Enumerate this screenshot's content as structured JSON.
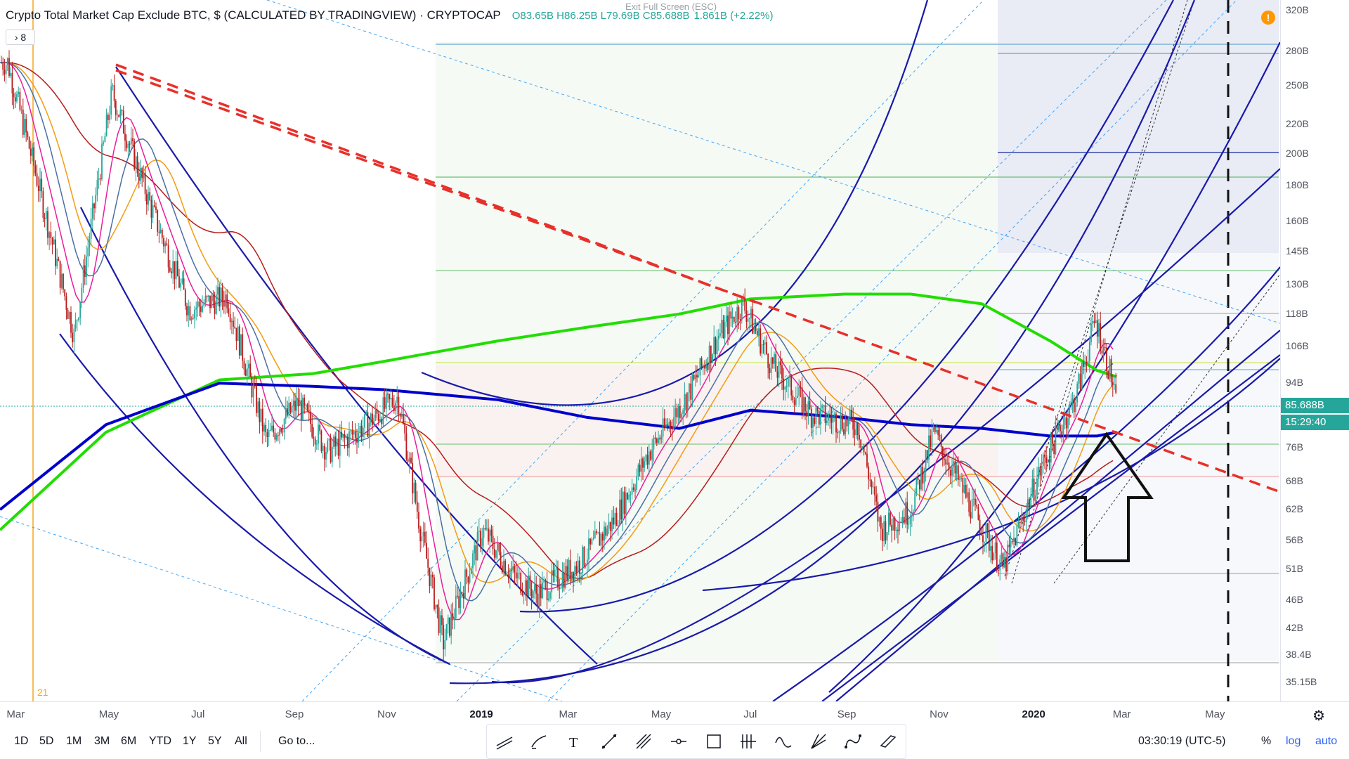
{
  "header": {
    "title": "Crypto Total Market Cap Exclude BTC, $ (CALCULATED BY TRADINGVIEW) · CRYPTOCAP",
    "ohlc": "O83.65B H86.25B L79.69B C85.688B",
    "change": "1.861B (+2.22%)",
    "exit_fullscreen": "Exit Full Screen (ESC)",
    "collapse_label": "› 8"
  },
  "price_axis": {
    "labels": [
      "320B",
      "280B",
      "250B",
      "220B",
      "200B",
      "180B",
      "160B",
      "145B",
      "130B",
      "118B",
      "106B",
      "94B",
      "76B",
      "68B",
      "62B",
      "56B",
      "51B",
      "46B",
      "42B",
      "38.4B",
      "35.15B"
    ],
    "last_price": "85.688B",
    "countdown": "15:29:40"
  },
  "time_axis": {
    "labels": [
      "Mar",
      "May",
      "Jul",
      "Sep",
      "Nov",
      "2019",
      "Mar",
      "May",
      "Jul",
      "Sep",
      "Nov",
      "2020",
      "Mar",
      "May"
    ]
  },
  "bottom_bar": {
    "ranges": [
      "1D",
      "5D",
      "1M",
      "3M",
      "6M",
      "YTD",
      "1Y",
      "5Y",
      "All"
    ],
    "goto": "Go to...",
    "clock": "03:30:19 (UTC-5)",
    "percent": "%",
    "log": "log",
    "auto": "auto"
  },
  "toolbar_icons": [
    "trend-line-icon",
    "brush-icon",
    "text-icon",
    "line-icon",
    "pitchfork-icon",
    "horizontal-ray-icon",
    "rectangle-icon",
    "fib-icon",
    "wave-icon",
    "gann-fan-icon",
    "path-icon",
    "parallel-channel-icon"
  ],
  "colors": {
    "accent_blue": "#0000cc",
    "ma_green": "#22dd00",
    "trend_red": "#e8302a",
    "price_tag": "#26a69a",
    "candle_up": "#26a69a",
    "candle_down": "#b71c1c"
  },
  "chart_data": {
    "type": "candlestick",
    "title": "Crypto Total Market Cap Exclude BTC, $ (CALCULATED BY TRADINGVIEW) · CRYPTOCAP",
    "scale": "log",
    "ylim": [
      "33B",
      "330B"
    ],
    "xlim": [
      "2018-02-20",
      "2020-06-15"
    ],
    "last_close": "85.688B",
    "close_series": {
      "x": [
        "2018-02-25",
        "2018-03-15",
        "2018-04-10",
        "2018-05-05",
        "2018-06-01",
        "2018-06-25",
        "2018-07-20",
        "2018-08-15",
        "2018-09-05",
        "2018-09-25",
        "2018-10-20",
        "2018-11-10",
        "2018-11-25",
        "2018-12-10",
        "2019-01-05",
        "2019-01-25",
        "2019-02-10",
        "2019-03-10",
        "2019-04-02",
        "2019-04-25",
        "2019-05-20",
        "2019-06-10",
        "2019-06-26",
        "2019-07-15",
        "2019-08-10",
        "2019-09-10",
        "2019-09-25",
        "2019-10-15",
        "2019-10-30",
        "2019-11-25",
        "2019-12-15",
        "2020-01-10",
        "2020-02-01",
        "2020-02-14",
        "2020-02-25",
        "2020-02-28"
      ],
      "y": [
        270,
        190,
        110,
        245,
        165,
        120,
        125,
        78,
        88,
        75,
        82,
        90,
        58,
        40,
        58,
        50,
        47,
        52,
        60,
        75,
        90,
        110,
        122,
        100,
        85,
        82,
        58,
        62,
        80,
        62,
        51,
        72,
        90,
        116,
        95,
        85.7
      ]
    },
    "moving_average_slow": {
      "name": "",
      "x": [
        "2018-02-20",
        "2018-05-01",
        "2018-07-15",
        "2018-09-15",
        "2018-11-01",
        "2019-01-15",
        "2019-03-15",
        "2019-05-15",
        "2019-07-01",
        "2019-09-01",
        "2019-10-15",
        "2019-12-01",
        "2020-01-15",
        "2020-02-15",
        "2020-02-28"
      ],
      "y": [
        58,
        80,
        95,
        97,
        101,
        108,
        113,
        118,
        124,
        126,
        126,
        122,
        108,
        98,
        96
      ]
    },
    "moving_average_blue": {
      "name": "",
      "x": [
        "2018-02-20",
        "2018-05-01",
        "2018-07-15",
        "2018-09-15",
        "2018-11-01",
        "2019-01-15",
        "2019-03-15",
        "2019-05-15",
        "2019-07-01",
        "2019-09-01",
        "2019-10-15",
        "2019-12-01",
        "2020-01-15",
        "2020-02-15",
        "2020-02-28"
      ],
      "y": [
        62,
        82,
        94,
        93,
        92,
        89,
        84,
        81,
        86,
        84,
        82,
        81,
        79,
        79,
        80
      ]
    }
  }
}
